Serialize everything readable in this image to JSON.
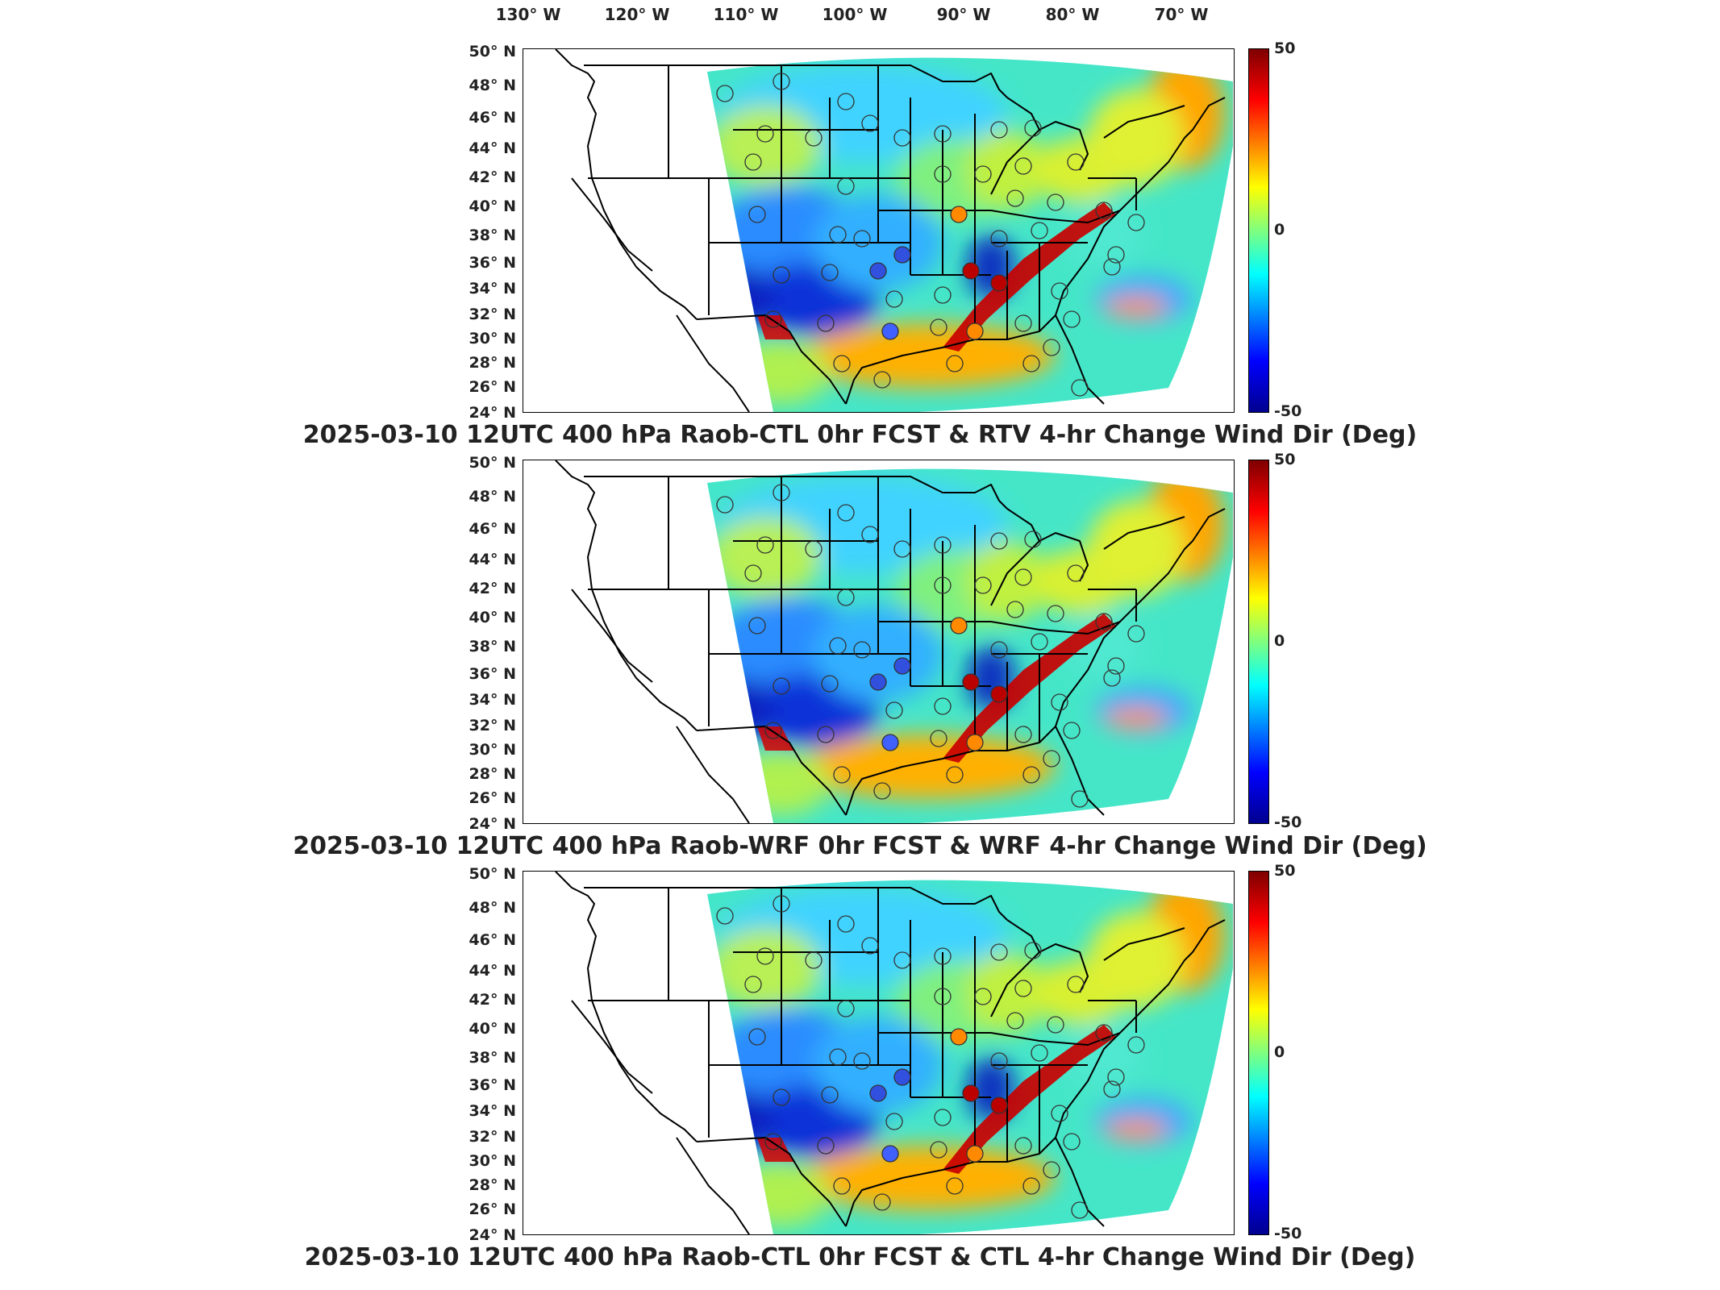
{
  "lon_labels": [
    "130° W",
    "120° W",
    "110° W",
    "100° W",
    "90° W",
    "80° W",
    "70° W"
  ],
  "lat_labels": [
    "50° N",
    "48° N",
    "46° N",
    "44° N",
    "42° N",
    "40° N",
    "38° N",
    "36° N",
    "34° N",
    "32° N",
    "30° N",
    "28° N",
    "26° N",
    "24° N"
  ],
  "colorbar": {
    "max": "50",
    "mid": "0",
    "min": "-50"
  },
  "panels": [
    {
      "title": "2025-03-10 12UTC 400 hPa Raob-CTL 0hr FCST & RTV 4-hr Change Wind Dir (Deg)"
    },
    {
      "title": "2025-03-10 12UTC 400 hPa Raob-WRF 0hr FCST & WRF 4-hr Change Wind Dir (Deg)"
    },
    {
      "title": "2025-03-10 12UTC 400 hPa Raob-CTL 0hr FCST & CTL 4-hr Change Wind Dir (Deg)"
    }
  ],
  "colors": {
    "high": "#7f0000",
    "zero": "#7fff7f",
    "low": "#00008f"
  }
}
